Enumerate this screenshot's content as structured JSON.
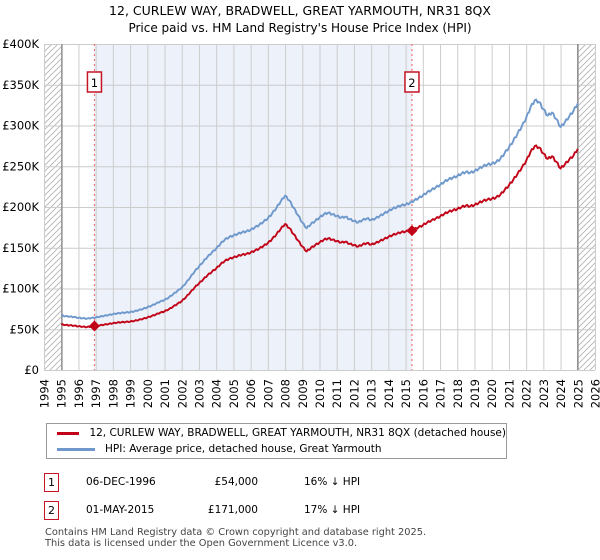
{
  "title": {
    "line1": "12, CURLEW WAY, BRADWELL, GREAT YARMOUTH, NR31 8QX",
    "line2": "Price paid vs. HM Land Registry's House Price Index (HPI)"
  },
  "legend": {
    "price_paid_label": "12, CURLEW WAY, BRADWELL, GREAT YARMOUTH, NR31 8QX (detached house)",
    "hpi_label": "HPI: Average price, detached house, Great Yarmouth"
  },
  "transactions": [
    {
      "label": "1",
      "date": "06-DEC-1996",
      "price": "£54,000",
      "vs_hpi": "16% ↓ HPI",
      "x": 1996.93,
      "value_k": 54
    },
    {
      "label": "2",
      "date": "01-MAY-2015",
      "price": "£171,000",
      "vs_hpi": "17% ↓ HPI",
      "x": 2015.37,
      "value_k": 171
    }
  ],
  "footer": {
    "line1": "Contains HM Land Registry data © Crown copyright and database right 2025.",
    "line2": "This data is licensed under the Open Government Licence v3.0."
  },
  "chart_data": {
    "type": "line",
    "unit": "GBP thousands",
    "x_axis": {
      "min": 1994,
      "max": 2026,
      "tick_interval": 1,
      "tick_labels": [
        "1994",
        "1995",
        "1996",
        "1997",
        "1998",
        "1999",
        "2000",
        "2001",
        "2002",
        "2003",
        "2004",
        "2005",
        "2006",
        "2007",
        "2008",
        "2009",
        "2010",
        "2011",
        "2012",
        "2013",
        "2014",
        "2015",
        "2016",
        "2017",
        "2018",
        "2019",
        "2020",
        "2021",
        "2022",
        "2023",
        "2024",
        "2025",
        "2026"
      ]
    },
    "y_axis": {
      "min": 0,
      "max": 400,
      "tick_interval": 50,
      "tick_labels": [
        "£0",
        "£50K",
        "£100K",
        "£150K",
        "£200K",
        "£250K",
        "£300K",
        "£350K",
        "£400K"
      ]
    },
    "colors": {
      "price_paid": "#c10418",
      "hpi": "#6f99cc",
      "sale_line": "#ee7272",
      "shade": "#edf1fa",
      "grid": "#cccccc",
      "hatch": "#b3b3b3",
      "boundary": "#8a8a8a",
      "badge_border": "#c41426"
    },
    "data_coverage": {
      "start": 1995.04,
      "end": 2025.0
    },
    "hatch_regions": [
      [
        1994,
        1995.04
      ],
      [
        2025.0,
        2026
      ]
    ],
    "owned_period_shade": {
      "from": 1996.93,
      "to": 2015.37
    },
    "series": [
      {
        "name": "HPI: Average price, detached house, Great Yarmouth",
        "key": "hpi",
        "points": [
          [
            1995.0,
            67
          ],
          [
            1995.25,
            66
          ],
          [
            1995.5,
            65.5
          ],
          [
            1995.75,
            65
          ],
          [
            1996.0,
            64
          ],
          [
            1996.25,
            63.5
          ],
          [
            1996.5,
            63
          ],
          [
            1996.75,
            63.8
          ],
          [
            1997.0,
            64.5
          ],
          [
            1997.25,
            65.5
          ],
          [
            1997.5,
            66.5
          ],
          [
            1997.75,
            67.5
          ],
          [
            1998.0,
            68.5
          ],
          [
            1998.25,
            69.5
          ],
          [
            1998.5,
            70
          ],
          [
            1998.75,
            70.5
          ],
          [
            1999.0,
            71
          ],
          [
            1999.25,
            72
          ],
          [
            1999.5,
            73.5
          ],
          [
            1999.75,
            75
          ],
          [
            2000.0,
            77
          ],
          [
            2000.25,
            79
          ],
          [
            2000.5,
            81.5
          ],
          [
            2000.75,
            84
          ],
          [
            2001.0,
            86
          ],
          [
            2001.25,
            89
          ],
          [
            2001.5,
            93
          ],
          [
            2001.75,
            97
          ],
          [
            2002.0,
            101
          ],
          [
            2002.25,
            107
          ],
          [
            2002.5,
            114
          ],
          [
            2002.75,
            121
          ],
          [
            2003.0,
            127
          ],
          [
            2003.25,
            133
          ],
          [
            2003.5,
            139
          ],
          [
            2003.75,
            144
          ],
          [
            2004.0,
            149
          ],
          [
            2004.25,
            155
          ],
          [
            2004.5,
            160
          ],
          [
            2004.75,
            163
          ],
          [
            2005.0,
            165
          ],
          [
            2005.25,
            167
          ],
          [
            2005.5,
            169
          ],
          [
            2005.75,
            170
          ],
          [
            2006.0,
            172
          ],
          [
            2006.25,
            175
          ],
          [
            2006.5,
            178
          ],
          [
            2006.75,
            182
          ],
          [
            2007.0,
            186
          ],
          [
            2007.25,
            192
          ],
          [
            2007.5,
            199
          ],
          [
            2007.75,
            207
          ],
          [
            2008.0,
            214
          ],
          [
            2008.25,
            208
          ],
          [
            2008.5,
            199
          ],
          [
            2008.75,
            190
          ],
          [
            2009.0,
            181
          ],
          [
            2009.25,
            174
          ],
          [
            2009.5,
            179
          ],
          [
            2009.75,
            183
          ],
          [
            2010.0,
            187
          ],
          [
            2010.25,
            191
          ],
          [
            2010.5,
            193
          ],
          [
            2010.75,
            191
          ],
          [
            2011.0,
            189
          ],
          [
            2011.25,
            187
          ],
          [
            2011.5,
            188
          ],
          [
            2011.75,
            185
          ],
          [
            2012.0,
            183
          ],
          [
            2012.25,
            181
          ],
          [
            2012.5,
            184
          ],
          [
            2012.75,
            186
          ],
          [
            2013.0,
            184
          ],
          [
            2013.25,
            186
          ],
          [
            2013.5,
            189
          ],
          [
            2013.75,
            192
          ],
          [
            2014.0,
            195
          ],
          [
            2014.25,
            198
          ],
          [
            2014.5,
            200
          ],
          [
            2014.75,
            202
          ],
          [
            2015.0,
            203
          ],
          [
            2015.25,
            205
          ],
          [
            2015.5,
            208
          ],
          [
            2015.75,
            211
          ],
          [
            2016.0,
            214
          ],
          [
            2016.25,
            218
          ],
          [
            2016.5,
            221
          ],
          [
            2016.75,
            224
          ],
          [
            2017.0,
            227
          ],
          [
            2017.25,
            231
          ],
          [
            2017.5,
            234
          ],
          [
            2017.75,
            236
          ],
          [
            2018.0,
            238
          ],
          [
            2018.25,
            241
          ],
          [
            2018.5,
            243
          ],
          [
            2018.75,
            242
          ],
          [
            2019.0,
            244
          ],
          [
            2019.25,
            247
          ],
          [
            2019.5,
            250
          ],
          [
            2019.75,
            252
          ],
          [
            2020.0,
            253
          ],
          [
            2020.25,
            255
          ],
          [
            2020.5,
            259
          ],
          [
            2020.75,
            266
          ],
          [
            2021.0,
            273
          ],
          [
            2021.25,
            281
          ],
          [
            2021.5,
            290
          ],
          [
            2021.75,
            299
          ],
          [
            2022.0,
            309
          ],
          [
            2022.25,
            322
          ],
          [
            2022.5,
            331
          ],
          [
            2022.75,
            329
          ],
          [
            2023.0,
            320
          ],
          [
            2023.25,
            312
          ],
          [
            2023.5,
            316
          ],
          [
            2023.75,
            308
          ],
          [
            2024.0,
            298
          ],
          [
            2024.25,
            304
          ],
          [
            2024.5,
            311
          ],
          [
            2024.75,
            318
          ],
          [
            2025.0,
            327
          ]
        ]
      },
      {
        "name": "12, CURLEW WAY, BRADWELL, GREAT YARMOUTH, NR31 8QX (detached house)",
        "key": "price_paid",
        "points": [
          [
            1995.0,
            56
          ],
          [
            1995.25,
            55.2
          ],
          [
            1995.5,
            54.8
          ],
          [
            1995.75,
            54.4
          ],
          [
            1996.0,
            53.6
          ],
          [
            1996.25,
            53.1
          ],
          [
            1996.5,
            52.7
          ],
          [
            1996.75,
            53.4
          ],
          [
            1997.0,
            54
          ],
          [
            1997.25,
            54.8
          ],
          [
            1997.5,
            55.7
          ],
          [
            1997.75,
            56.5
          ],
          [
            1998.0,
            57.3
          ],
          [
            1998.25,
            58.2
          ],
          [
            1998.5,
            58.6
          ],
          [
            1998.75,
            59
          ],
          [
            1999.0,
            59.4
          ],
          [
            1999.25,
            60.3
          ],
          [
            1999.5,
            61.5
          ],
          [
            1999.75,
            62.8
          ],
          [
            2000.0,
            64.4
          ],
          [
            2000.25,
            66.1
          ],
          [
            2000.5,
            68.2
          ],
          [
            2000.75,
            70.3
          ],
          [
            2001.0,
            72
          ],
          [
            2001.25,
            74.5
          ],
          [
            2001.5,
            77.8
          ],
          [
            2001.75,
            81.2
          ],
          [
            2002.0,
            84.5
          ],
          [
            2002.25,
            89.6
          ],
          [
            2002.5,
            95.4
          ],
          [
            2002.75,
            101.3
          ],
          [
            2003.0,
            106.3
          ],
          [
            2003.25,
            111.3
          ],
          [
            2003.5,
            116.3
          ],
          [
            2003.75,
            120.5
          ],
          [
            2004.0,
            124.7
          ],
          [
            2004.25,
            129.7
          ],
          [
            2004.5,
            133.9
          ],
          [
            2004.75,
            136.4
          ],
          [
            2005.0,
            138.1
          ],
          [
            2005.25,
            139.8
          ],
          [
            2005.5,
            141.5
          ],
          [
            2005.75,
            142.3
          ],
          [
            2006.0,
            144
          ],
          [
            2006.25,
            146.5
          ],
          [
            2006.5,
            149
          ],
          [
            2006.75,
            152.3
          ],
          [
            2007.0,
            155.7
          ],
          [
            2007.25,
            160.7
          ],
          [
            2007.5,
            166.6
          ],
          [
            2007.75,
            173.3
          ],
          [
            2008.0,
            179.1
          ],
          [
            2008.25,
            174.1
          ],
          [
            2008.5,
            166.6
          ],
          [
            2008.75,
            159
          ],
          [
            2009.0,
            151.5
          ],
          [
            2009.25,
            145.5
          ],
          [
            2009.5,
            149.8
          ],
          [
            2009.75,
            153.2
          ],
          [
            2010.0,
            156.5
          ],
          [
            2010.25,
            159.9
          ],
          [
            2010.5,
            161.5
          ],
          [
            2010.75,
            159.9
          ],
          [
            2011.0,
            158.2
          ],
          [
            2011.25,
            156.5
          ],
          [
            2011.5,
            157.4
          ],
          [
            2011.75,
            154.8
          ],
          [
            2012.0,
            153.2
          ],
          [
            2012.25,
            151.5
          ],
          [
            2012.5,
            154
          ],
          [
            2012.75,
            155.7
          ],
          [
            2013.0,
            154
          ],
          [
            2013.25,
            155.7
          ],
          [
            2013.5,
            158.2
          ],
          [
            2013.75,
            160.7
          ],
          [
            2014.0,
            163.2
          ],
          [
            2014.25,
            165.7
          ],
          [
            2014.5,
            167.4
          ],
          [
            2014.75,
            169.1
          ],
          [
            2015.0,
            169.9
          ],
          [
            2015.25,
            171
          ],
          [
            2015.5,
            172.6
          ],
          [
            2015.75,
            175.1
          ],
          [
            2016.0,
            177.6
          ],
          [
            2016.25,
            181
          ],
          [
            2016.5,
            183.4
          ],
          [
            2016.75,
            185.9
          ],
          [
            2017.0,
            188.4
          ],
          [
            2017.25,
            191.7
          ],
          [
            2017.5,
            194.2
          ],
          [
            2017.75,
            195.9
          ],
          [
            2018.0,
            197.5
          ],
          [
            2018.25,
            200
          ],
          [
            2018.5,
            201.7
          ],
          [
            2018.75,
            200.9
          ],
          [
            2019.0,
            202.5
          ],
          [
            2019.25,
            205
          ],
          [
            2019.5,
            207.5
          ],
          [
            2019.75,
            209.2
          ],
          [
            2020.0,
            210
          ],
          [
            2020.25,
            211.6
          ],
          [
            2020.5,
            215
          ],
          [
            2020.75,
            220.8
          ],
          [
            2021.0,
            226.6
          ],
          [
            2021.25,
            233.2
          ],
          [
            2021.5,
            240.7
          ],
          [
            2021.75,
            248.2
          ],
          [
            2022.0,
            256.5
          ],
          [
            2022.25,
            267.3
          ],
          [
            2022.5,
            274.7
          ],
          [
            2022.75,
            273.1
          ],
          [
            2023.0,
            265.6
          ],
          [
            2023.25,
            259
          ],
          [
            2023.5,
            262.3
          ],
          [
            2023.75,
            255.6
          ],
          [
            2024.0,
            247.3
          ],
          [
            2024.25,
            252.3
          ],
          [
            2024.5,
            258.1
          ],
          [
            2024.75,
            263.1
          ],
          [
            2025.0,
            271.4
          ]
        ]
      }
    ]
  }
}
